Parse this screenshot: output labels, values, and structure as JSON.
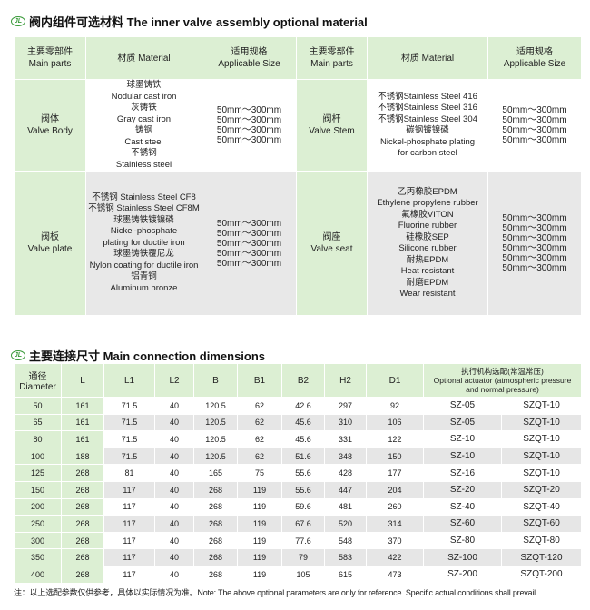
{
  "section1": {
    "title": "阀内组件可选材料 The inner valve assembly optional material",
    "headers": [
      {
        "cn": "主要零部件",
        "en": "Main parts"
      },
      {
        "cn": "材质 Material",
        "en": ""
      },
      {
        "cn": "适用规格",
        "en": "Applicable Size"
      },
      {
        "cn": "主要零部件",
        "en": "Main parts"
      },
      {
        "cn": "材质 Material",
        "en": ""
      },
      {
        "cn": "适用规格",
        "en": "Applicable Size"
      }
    ],
    "rows": [
      {
        "part1": {
          "cn": "阀体",
          "en": "Valve Body"
        },
        "materials1": [
          "球墨铸铁",
          "Nodular cast iron",
          "灰铸铁",
          "Gray cast iron",
          "铸钢",
          "Cast steel",
          "不锈钢",
          "Stainless steel"
        ],
        "sizes1": [
          "50mm～300mm",
          "50mm～300mm",
          "50mm～300mm",
          "50mm～300mm"
        ],
        "part2": {
          "cn": "阀杆",
          "en": "Valve Stem"
        },
        "materials2": [
          "不锈钢Stainless Steel 416",
          "不锈钢Stainless Steel 316",
          "不锈钢Stainless Steel 304",
          "碳钢镀镍磷",
          "Nickel-phosphate plating",
          "for carbon steel"
        ],
        "sizes2": [
          "50mm～300mm",
          "50mm～300mm",
          "50mm～300mm",
          "50mm～300mm"
        ]
      },
      {
        "part1": {
          "cn": "阀板",
          "en": "Valve plate"
        },
        "materials1": [
          "不锈钢 Stainless Steel CF8",
          "不锈钢 Stainless Steel CF8M",
          "球墨铸铁镀镍磷",
          "Nickel-phosphate",
          "plating for ductile iron",
          "球墨铸铁覆尼龙",
          "Nylon coating for ductile iron",
          "铝青铜",
          "Aluminum bronze"
        ],
        "sizes1": [
          "50mm～300mm",
          "50mm～300mm",
          "50mm～300mm",
          "50mm～300mm",
          "50mm～300mm"
        ],
        "part2": {
          "cn": "阀座",
          "en": "Valve seat"
        },
        "materials2": [
          "乙丙橡胶EPDM",
          "Ethylene propylene rubber",
          "氟橡胶VITON",
          "Fluorine rubber",
          "硅橡胶SEP",
          "Silicone rubber",
          "耐热EPDM",
          "Heat resistant",
          "耐磨EPDM",
          "Wear resistant"
        ],
        "sizes2": [
          "50mm～300mm",
          "50mm～300mm",
          "50mm～300mm",
          "50mm～300mm",
          "50mm～300mm",
          "50mm～300mm"
        ]
      }
    ]
  },
  "section2": {
    "title": "主要连接尺寸 Main connection dimensions",
    "headers": {
      "diameter_cn": "通径",
      "diameter_en": "Diameter",
      "cols": [
        "L",
        "L1",
        "L2",
        "B",
        "B1",
        "B2",
        "H2",
        "D1"
      ],
      "actuator": [
        "执行机构选配(常温常压)",
        "Optional actuator (atmospheric pressure",
        "and normal pressure)"
      ]
    },
    "rows": [
      [
        "50",
        "161",
        "71.5",
        "40",
        "120.5",
        "62",
        "42.6",
        "297",
        "92",
        "SZ-05",
        "SZQT-10"
      ],
      [
        "65",
        "161",
        "71.5",
        "40",
        "120.5",
        "62",
        "45.6",
        "310",
        "106",
        "SZ-05",
        "SZQT-10"
      ],
      [
        "80",
        "161",
        "71.5",
        "40",
        "120.5",
        "62",
        "45.6",
        "331",
        "122",
        "SZ-10",
        "SZQT-10"
      ],
      [
        "100",
        "188",
        "71.5",
        "40",
        "120.5",
        "62",
        "51.6",
        "348",
        "150",
        "SZ-10",
        "SZQT-10"
      ],
      [
        "125",
        "268",
        "81",
        "40",
        "165",
        "75",
        "55.6",
        "428",
        "177",
        "SZ-16",
        "SZQT-10"
      ],
      [
        "150",
        "268",
        "117",
        "40",
        "268",
        "119",
        "55.6",
        "447",
        "204",
        "SZ-20",
        "SZQT-20"
      ],
      [
        "200",
        "268",
        "117",
        "40",
        "268",
        "119",
        "59.6",
        "481",
        "260",
        "SZ-40",
        "SZQT-40"
      ],
      [
        "250",
        "268",
        "117",
        "40",
        "268",
        "119",
        "67.6",
        "520",
        "314",
        "SZ-60",
        "SZQT-60"
      ],
      [
        "300",
        "268",
        "117",
        "40",
        "268",
        "119",
        "77.6",
        "548",
        "370",
        "SZ-80",
        "SZQT-80"
      ],
      [
        "350",
        "268",
        "117",
        "40",
        "268",
        "119",
        "79",
        "583",
        "422",
        "SZ-100",
        "SZQT-120"
      ],
      [
        "400",
        "268",
        "117",
        "40",
        "268",
        "119",
        "105",
        "615",
        "473",
        "SZ-200",
        "SZQT-200"
      ]
    ]
  },
  "note": "注：以上选配参数仅供参考，具体以实际情况为准。Note: The above optional parameters are only for reference. Specific actual conditions shall prevail.",
  "colors": {
    "header_green": "#dcefd3",
    "row_gray": "#e8e8e8",
    "logo_green": "#3a9a3a"
  }
}
